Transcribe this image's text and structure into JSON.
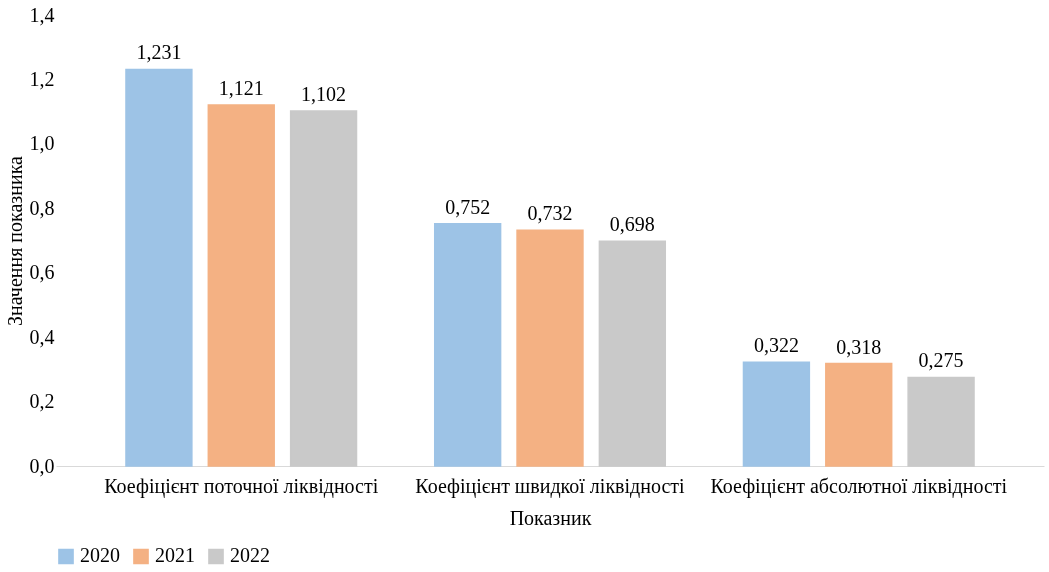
{
  "chart_data": {
    "type": "bar",
    "xlabel": "Показник",
    "ylabel": "Значення показника",
    "categories": [
      "Коефіцієнт поточної ліквідності",
      "Коефіцієнт швидкої ліквідності",
      "Коефіцієнт абсолютної ліквідності"
    ],
    "series": [
      {
        "name": "2020",
        "color": "#9dc3e6",
        "values": [
          1.231,
          0.752,
          0.322
        ],
        "value_labels": [
          "1,231",
          "0,752",
          "0,322"
        ]
      },
      {
        "name": "2021",
        "color": "#f4b183",
        "values": [
          1.121,
          0.732,
          0.318
        ],
        "value_labels": [
          "1,121",
          "0,732",
          "0,318"
        ]
      },
      {
        "name": "2022",
        "color": "#c9c9c9",
        "values": [
          1.102,
          0.698,
          0.275
        ],
        "value_labels": [
          "1,102",
          "0,698",
          "0,275"
        ]
      }
    ],
    "ylim": [
      0,
      1.4
    ],
    "yticks": [
      {
        "value": 0,
        "label": "0,0"
      },
      {
        "value": 0.2,
        "label": "0,2"
      },
      {
        "value": 0.4,
        "label": "0,4"
      },
      {
        "value": 0.6,
        "label": "0,6"
      },
      {
        "value": 0.8,
        "label": "0,8"
      },
      {
        "value": 1.0,
        "label": "1,0"
      },
      {
        "value": 1.2,
        "label": "1,2"
      },
      {
        "value": 1.4,
        "label": "1,4"
      }
    ],
    "grid": false,
    "legend": "bottom"
  }
}
